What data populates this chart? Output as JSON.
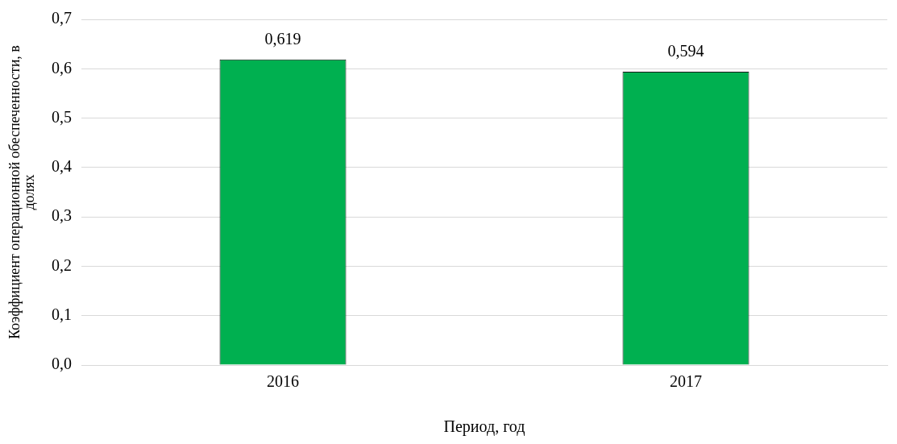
{
  "chart_data": {
    "type": "bar",
    "xlabel": "Период, год",
    "ylabel": "Коэффициент операционной обеспеченности, в долях",
    "categories": [
      "2016",
      "2017"
    ],
    "values": [
      0.619,
      0.594
    ],
    "color": "#00b050",
    "value_labels": [
      "0,619",
      "0,594"
    ],
    "ylim": [
      0,
      0.7
    ],
    "yticks": [
      {
        "value": 0,
        "label": "0,0"
      },
      {
        "value": 0.1,
        "label": "0,1"
      },
      {
        "value": 0.2,
        "label": "0,2"
      },
      {
        "value": 0.3,
        "label": "0,3"
      },
      {
        "value": 0.4,
        "label": "0,4"
      },
      {
        "value": 0.5,
        "label": "0,5"
      },
      {
        "value": 0.6,
        "label": "0,6"
      },
      {
        "value": 0.7,
        "label": "0,7"
      }
    ],
    "grid": "y",
    "legend": false
  }
}
